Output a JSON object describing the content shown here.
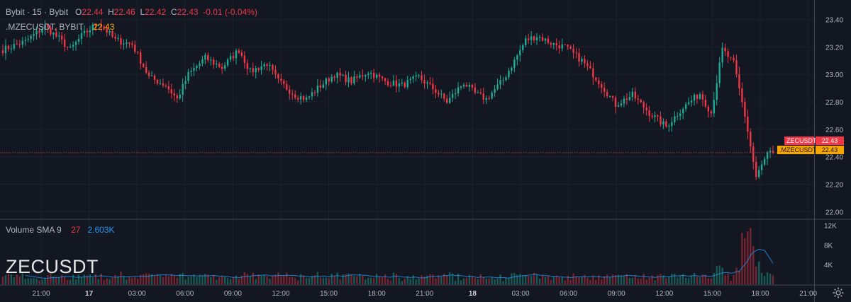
{
  "header": {
    "exchange_line": "Bybit · 15 · Bybit",
    "o_label": "O",
    "o_value": "22.44",
    "h_label": "H",
    "h_value": "22.46",
    "l_label": "L",
    "l_value": "22.42",
    "c_label": "C",
    "c_value": "22.43",
    "change": "-0.01 (-0.04%)",
    "index_symbol": ".MZECUSDT, BYBIT",
    "index_value": "22.43"
  },
  "volume_header": {
    "label": "Volume SMA 9",
    "vol_value": "27",
    "sma_value": "2.603K"
  },
  "watermark": "ZECUSDT",
  "price_badges": [
    {
      "symbol": "ZECUSDT",
      "value": "22.43",
      "color": "#f23645"
    },
    {
      "symbol": ".MZECUSDT",
      "value": "22.43",
      "color": "#f7a600"
    }
  ],
  "colors": {
    "up": "#22ab94",
    "down": "#f23645",
    "index": "#f7a600",
    "sma": "#2196f3"
  },
  "chart_data": {
    "type": "candlestick",
    "interval": "15",
    "price_axis": {
      "ticks": [
        22.0,
        22.2,
        22.4,
        22.6,
        22.8,
        23.0,
        23.2,
        23.4
      ],
      "ylim": [
        21.95,
        23.47
      ],
      "tick_labels": [
        "22.00",
        "22.20",
        "22.40",
        "22.60",
        "22.80",
        "23.00",
        "23.20",
        "23.40"
      ]
    },
    "volume_axis": {
      "ticks": [
        4000,
        8000,
        12000
      ],
      "tick_labels": [
        "4K",
        "8K",
        "12K"
      ],
      "ylim": [
        0,
        12500
      ]
    },
    "time_axis": {
      "labels": [
        "21:00",
        "17",
        "03:00",
        "06:00",
        "09:00",
        "12:00",
        "15:00",
        "18:00",
        "21:00",
        "18",
        "03:00",
        "06:00",
        "09:00",
        "12:00",
        "15:00",
        "18:00",
        "21:00"
      ],
      "bold": [
        "17",
        "18"
      ]
    },
    "last_price": 22.43,
    "keyframes": [
      {
        "i": 0,
        "p": 23.18
      },
      {
        "i": 8,
        "p": 23.24
      },
      {
        "i": 15,
        "p": 23.35
      },
      {
        "i": 20,
        "p": 23.26
      },
      {
        "i": 24,
        "p": 23.18
      },
      {
        "i": 28,
        "p": 23.28
      },
      {
        "i": 34,
        "p": 23.38
      },
      {
        "i": 40,
        "p": 23.25
      },
      {
        "i": 46,
        "p": 23.22
      },
      {
        "i": 52,
        "p": 22.98
      },
      {
        "i": 58,
        "p": 22.92
      },
      {
        "i": 62,
        "p": 22.82
      },
      {
        "i": 66,
        "p": 23.0
      },
      {
        "i": 72,
        "p": 23.12
      },
      {
        "i": 78,
        "p": 23.05
      },
      {
        "i": 84,
        "p": 23.18
      },
      {
        "i": 88,
        "p": 23.02
      },
      {
        "i": 94,
        "p": 23.08
      },
      {
        "i": 98,
        "p": 22.95
      },
      {
        "i": 104,
        "p": 22.85
      },
      {
        "i": 108,
        "p": 22.82
      },
      {
        "i": 112,
        "p": 22.9
      },
      {
        "i": 118,
        "p": 23.0
      },
      {
        "i": 124,
        "p": 22.95
      },
      {
        "i": 130,
        "p": 23.02
      },
      {
        "i": 136,
        "p": 22.95
      },
      {
        "i": 142,
        "p": 22.92
      },
      {
        "i": 148,
        "p": 22.98
      },
      {
        "i": 154,
        "p": 22.88
      },
      {
        "i": 158,
        "p": 22.8
      },
      {
        "i": 164,
        "p": 22.94
      },
      {
        "i": 168,
        "p": 22.86
      },
      {
        "i": 172,
        "p": 22.82
      },
      {
        "i": 178,
        "p": 22.96
      },
      {
        "i": 182,
        "p": 23.1
      },
      {
        "i": 186,
        "p": 23.25
      },
      {
        "i": 190,
        "p": 23.28
      },
      {
        "i": 196,
        "p": 23.22
      },
      {
        "i": 200,
        "p": 23.2
      },
      {
        "i": 206,
        "p": 23.1
      },
      {
        "i": 212,
        "p": 22.95
      },
      {
        "i": 218,
        "p": 22.78
      },
      {
        "i": 224,
        "p": 22.85
      },
      {
        "i": 230,
        "p": 22.72
      },
      {
        "i": 236,
        "p": 22.62
      },
      {
        "i": 242,
        "p": 22.76
      },
      {
        "i": 248,
        "p": 22.86
      },
      {
        "i": 252,
        "p": 22.72
      },
      {
        "i": 256,
        "p": 23.18
      },
      {
        "i": 260,
        "p": 23.08
      },
      {
        "i": 264,
        "p": 22.7
      },
      {
        "i": 268,
        "p": 22.25
      },
      {
        "i": 272,
        "p": 22.42
      },
      {
        "i": 274,
        "p": 22.43
      }
    ]
  }
}
